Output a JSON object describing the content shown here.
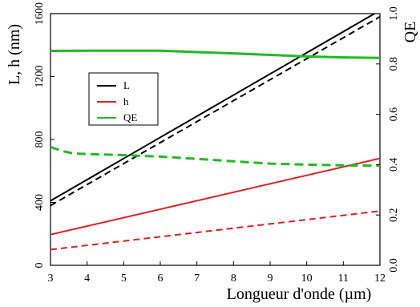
{
  "chart_data": {
    "type": "line",
    "xlabel": "Longueur d'onde (µm)",
    "ylabel_left": "L, h (nm)",
    "ylabel_right": "QE",
    "xlim": [
      3,
      12
    ],
    "ylim_left": [
      0,
      1600
    ],
    "ylim_right": [
      0,
      1.0
    ],
    "xticks": [
      3,
      4,
      5,
      6,
      7,
      8,
      9,
      10,
      11,
      12
    ],
    "yticks_left": [
      0,
      400,
      800,
      1200,
      1600
    ],
    "yticks_right": [
      "0.0",
      "0.2",
      "0.4",
      "0.6",
      "0.8",
      "1.0"
    ],
    "legend": {
      "position": "upper-left",
      "entries": [
        {
          "label": "L",
          "color": "#000000"
        },
        {
          "label": "h",
          "color": "#e02020"
        },
        {
          "label": "QE",
          "color": "#22bb22"
        }
      ]
    },
    "series": [
      {
        "name": "L",
        "axis": "left",
        "style": "solid",
        "color": "#000000",
        "x": [
          3,
          12
        ],
        "y": [
          410,
          1620
        ]
      },
      {
        "name": "L",
        "axis": "left",
        "style": "dashed",
        "color": "#000000",
        "x": [
          3,
          12
        ],
        "y": [
          380,
          1580
        ]
      },
      {
        "name": "h",
        "axis": "left",
        "style": "solid",
        "color": "#e02020",
        "x": [
          3,
          12
        ],
        "y": [
          195,
          680
        ]
      },
      {
        "name": "h",
        "axis": "left",
        "style": "dashed",
        "color": "#e02020",
        "x": [
          3,
          12
        ],
        "y": [
          100,
          345
        ]
      },
      {
        "name": "QE",
        "axis": "right",
        "style": "solid",
        "color": "#22bb22",
        "x": [
          3,
          4,
          5,
          6,
          6.5,
          7,
          8,
          9,
          10,
          11,
          12
        ],
        "y": [
          0.852,
          0.853,
          0.853,
          0.853,
          0.85,
          0.847,
          0.842,
          0.836,
          0.83,
          0.826,
          0.824
        ]
      },
      {
        "name": "QE",
        "axis": "right",
        "style": "dashed",
        "color": "#22bb22",
        "x": [
          3,
          3.3,
          3.6,
          4,
          5,
          6,
          7,
          8,
          9,
          10,
          11,
          12
        ],
        "y": [
          0.47,
          0.455,
          0.445,
          0.442,
          0.438,
          0.432,
          0.423,
          0.413,
          0.404,
          0.4,
          0.397,
          0.396
        ]
      }
    ]
  }
}
